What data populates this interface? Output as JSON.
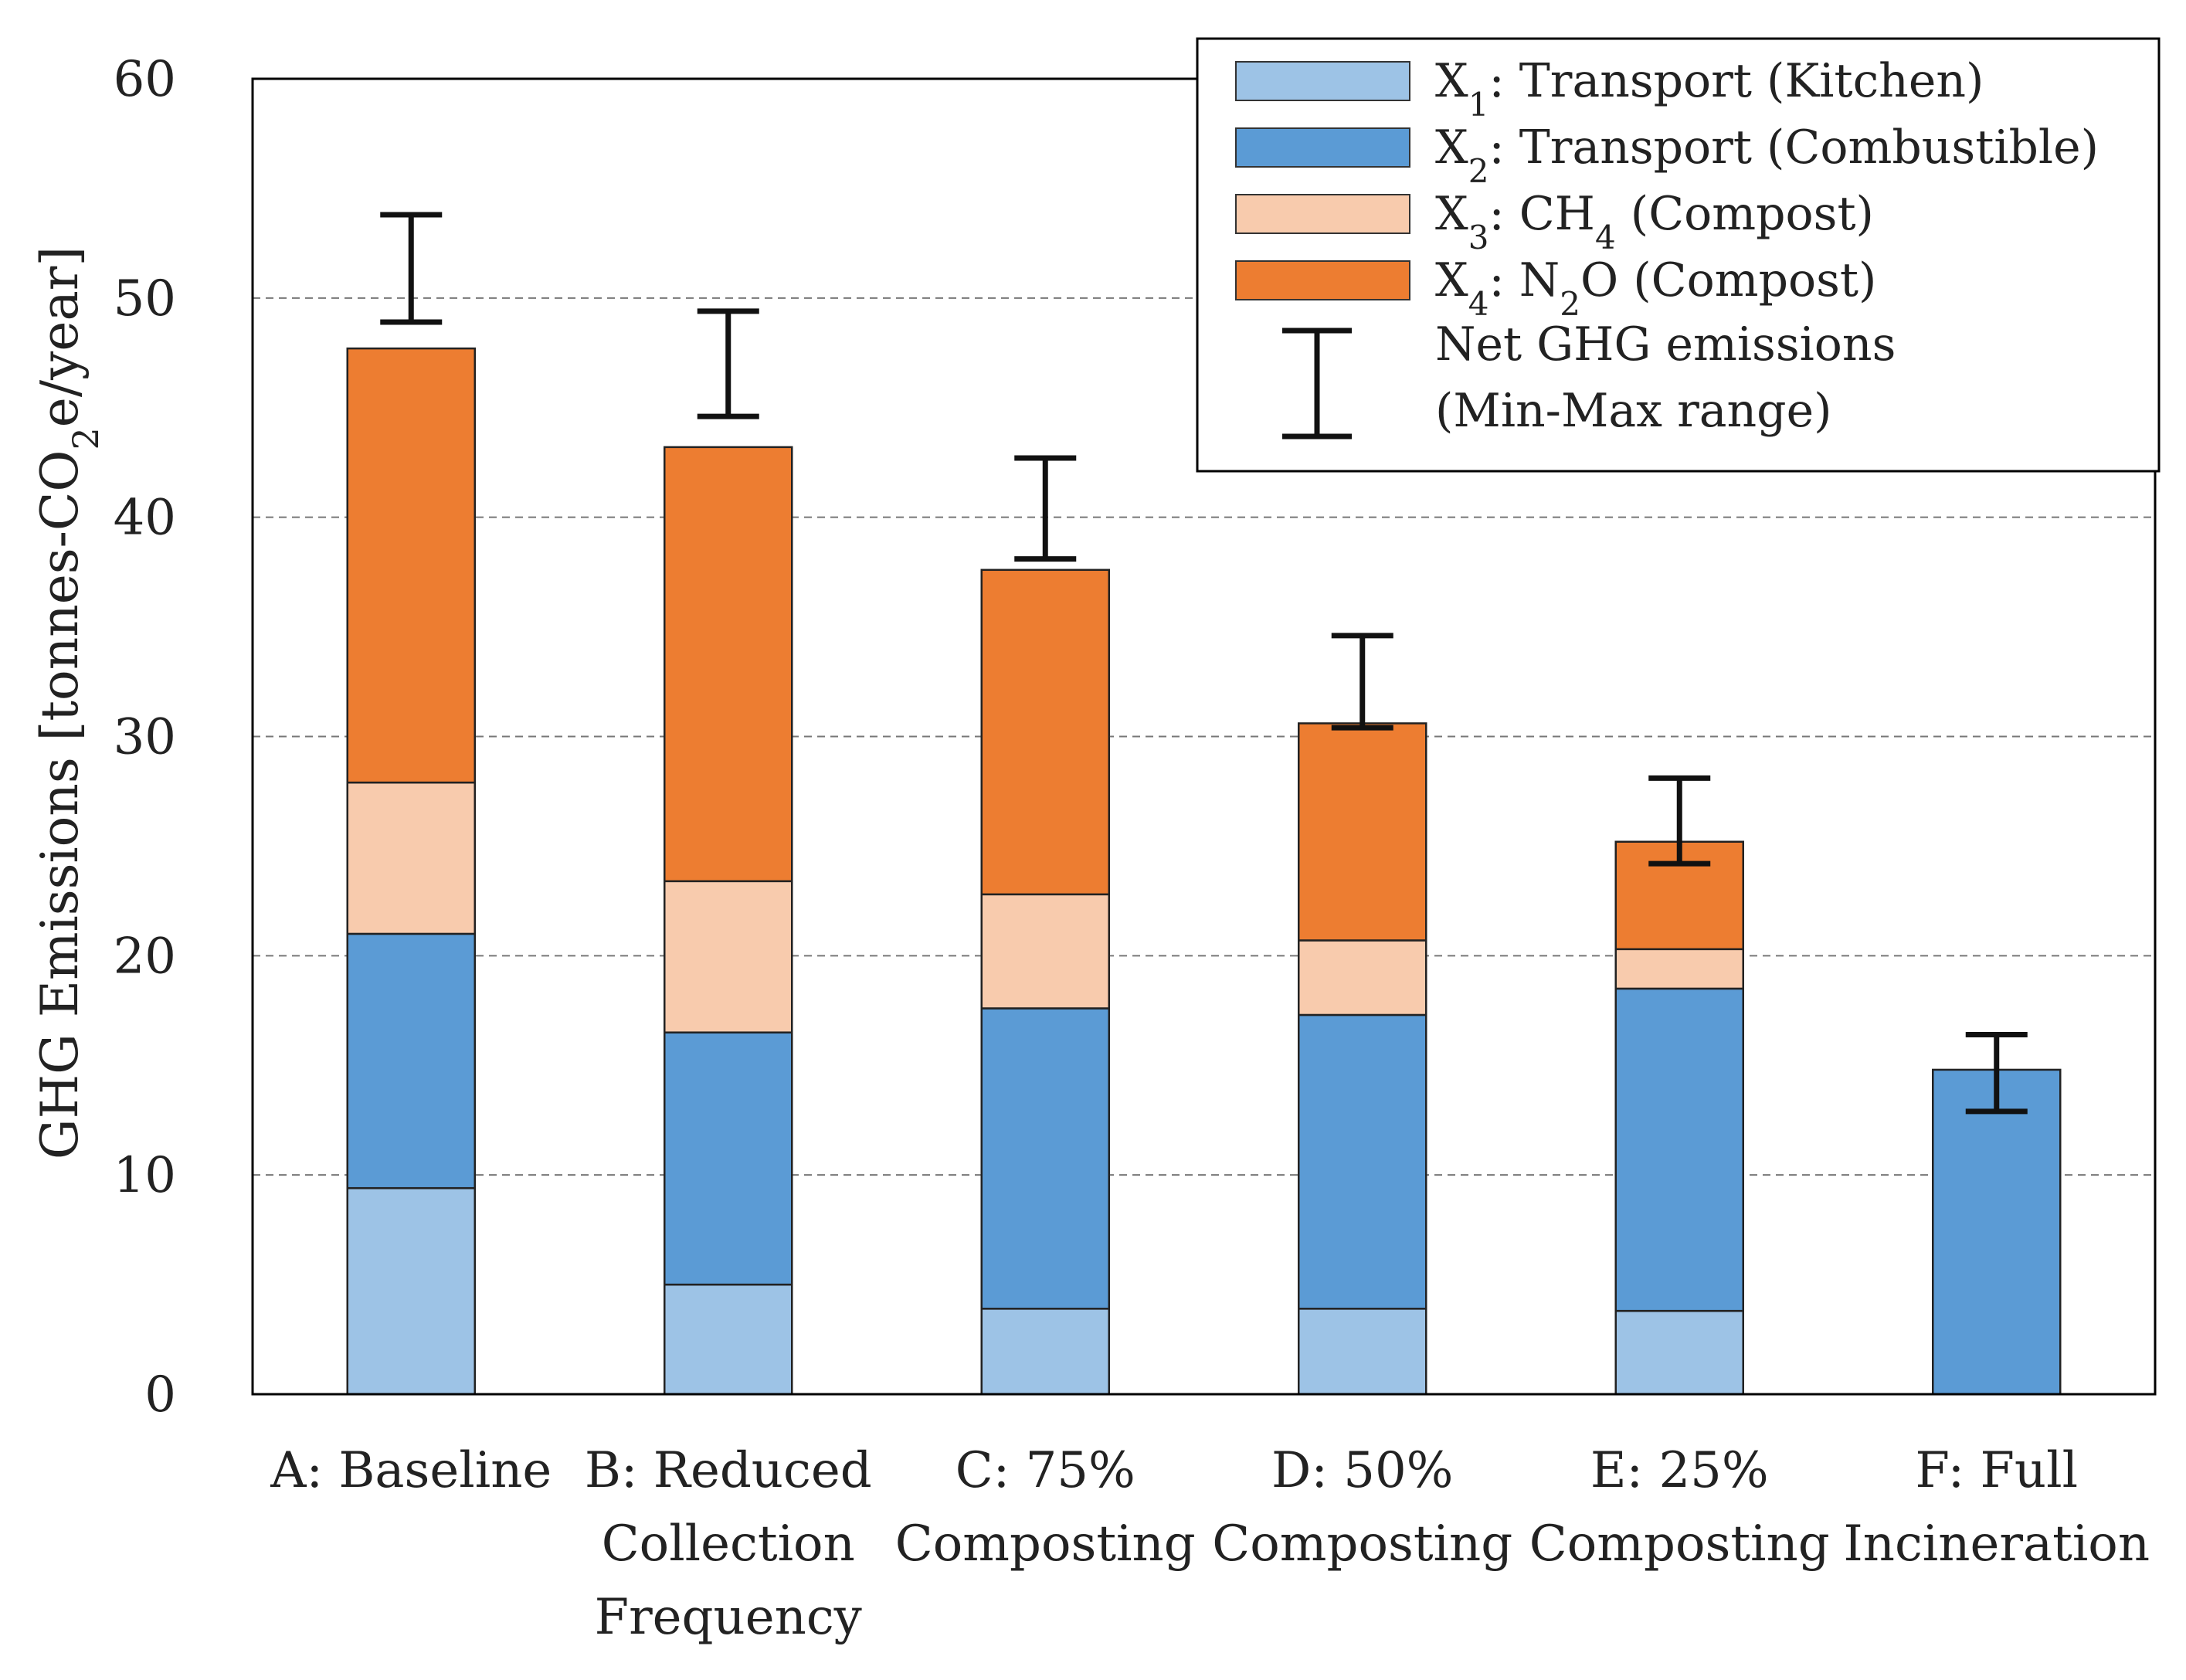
{
  "chart_data": {
    "type": "bar",
    "stacked": true,
    "ylabel": "GHG Emissions [tonnes-CO2e/year]",
    "ylabel_parts": {
      "main": "GHG Emissions [tonnes-CO",
      "sub": "2",
      "tail": "e/year]"
    },
    "ylim": [
      0,
      60
    ],
    "yticks": [
      "0",
      "10",
      "20",
      "30",
      "40",
      "50",
      "60"
    ],
    "gridlines": "dashed horizontal",
    "legend_position": "top-right",
    "categories": [
      {
        "id": "A",
        "lines": [
          "A: Baseline"
        ]
      },
      {
        "id": "B",
        "lines": [
          "B: Reduced",
          "Collection",
          "Frequency"
        ]
      },
      {
        "id": "C",
        "lines": [
          "C: 75%",
          "Composting"
        ]
      },
      {
        "id": "D",
        "lines": [
          "D: 50%",
          "Composting"
        ]
      },
      {
        "id": "E",
        "lines": [
          "E: 25%",
          "Composting"
        ]
      },
      {
        "id": "F",
        "lines": [
          "F: Full",
          "Incineration"
        ]
      }
    ],
    "series": [
      {
        "key": "x1",
        "name": "X1: Transport (Kitchen)",
        "label_parts": {
          "var": "X",
          "sub": "1",
          "rest": ": Transport (Kitchen)"
        },
        "color": "#9dc3e6",
        "values": [
          9.4,
          5.0,
          3.9,
          3.9,
          3.8,
          0
        ]
      },
      {
        "key": "x2",
        "name": "X2: Transport (Combustible)",
        "label_parts": {
          "var": "X",
          "sub": "2",
          "rest": ": Transport (Combustible)"
        },
        "color": "#5b9bd5",
        "values": [
          11.6,
          11.5,
          13.7,
          13.4,
          14.7,
          14.8
        ]
      },
      {
        "key": "x3",
        "name": "X3: CH4 (Compost)",
        "label_parts": {
          "var": "X",
          "sub": "3",
          "rest": ": CH",
          "sub2": "4",
          "rest2": " (Compost)"
        },
        "color": "#f8cbad",
        "values": [
          6.9,
          6.9,
          5.2,
          3.4,
          1.8,
          0
        ]
      },
      {
        "key": "x4",
        "name": "X4: N2O (Compost)",
        "label_parts": {
          "var": "X",
          "sub": "4",
          "rest": ": N",
          "sub2": "2",
          "rest2": "O (Compost)"
        },
        "color": "#ed7d31",
        "values": [
          19.8,
          19.8,
          14.8,
          9.9,
          4.9,
          0
        ]
      }
    ],
    "error_bars": {
      "label_lines": [
        "Net GHG emissions",
        "(Min-Max range)"
      ],
      "min": [
        48.9,
        44.6,
        38.1,
        30.4,
        24.2,
        12.9
      ],
      "max": [
        53.8,
        49.4,
        42.7,
        34.6,
        28.1,
        16.4
      ]
    }
  }
}
